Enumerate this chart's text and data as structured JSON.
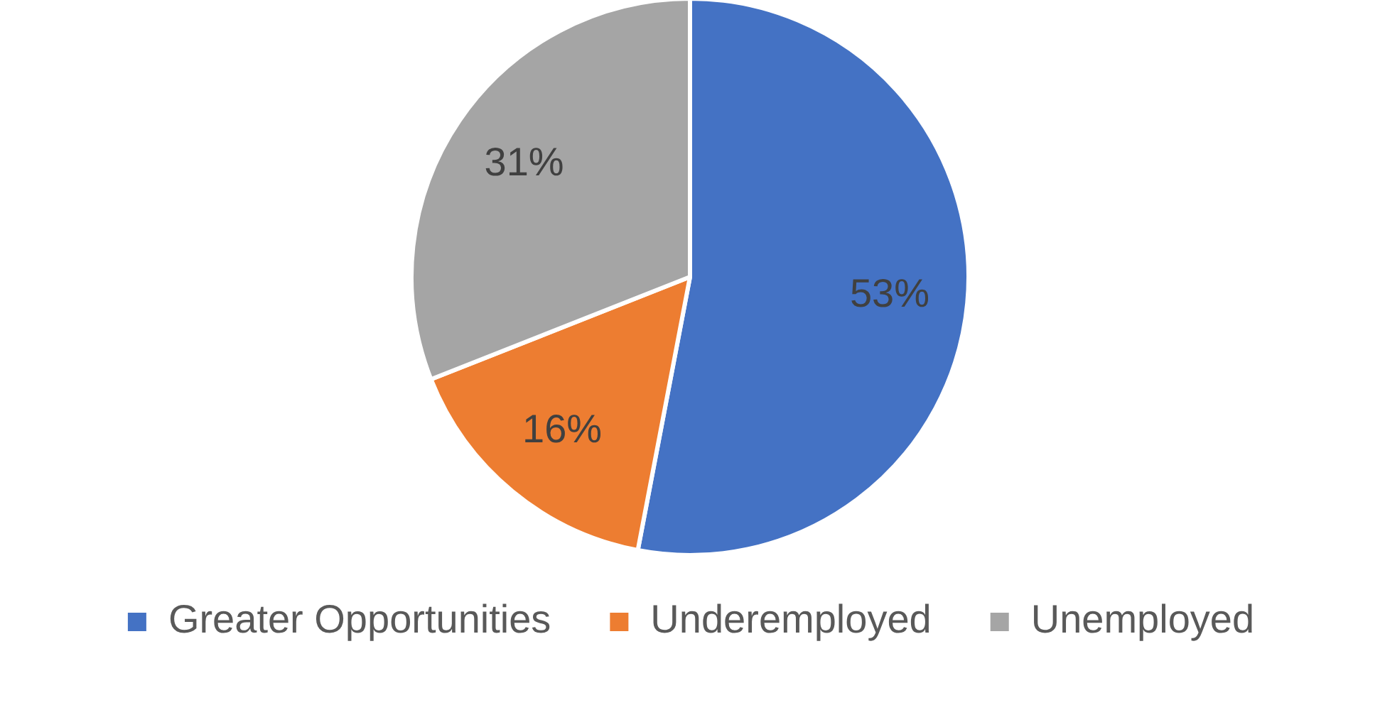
{
  "chart_data": {
    "type": "pie",
    "categories": [
      "Greater Opportunities",
      "Underemployed",
      "Unemployed"
    ],
    "values": [
      53,
      16,
      31
    ],
    "value_labels": [
      "53%",
      "16%",
      "31%"
    ],
    "colors": [
      "#4472c4",
      "#ed7d31",
      "#a5a5a5"
    ],
    "legend": "bottom"
  }
}
